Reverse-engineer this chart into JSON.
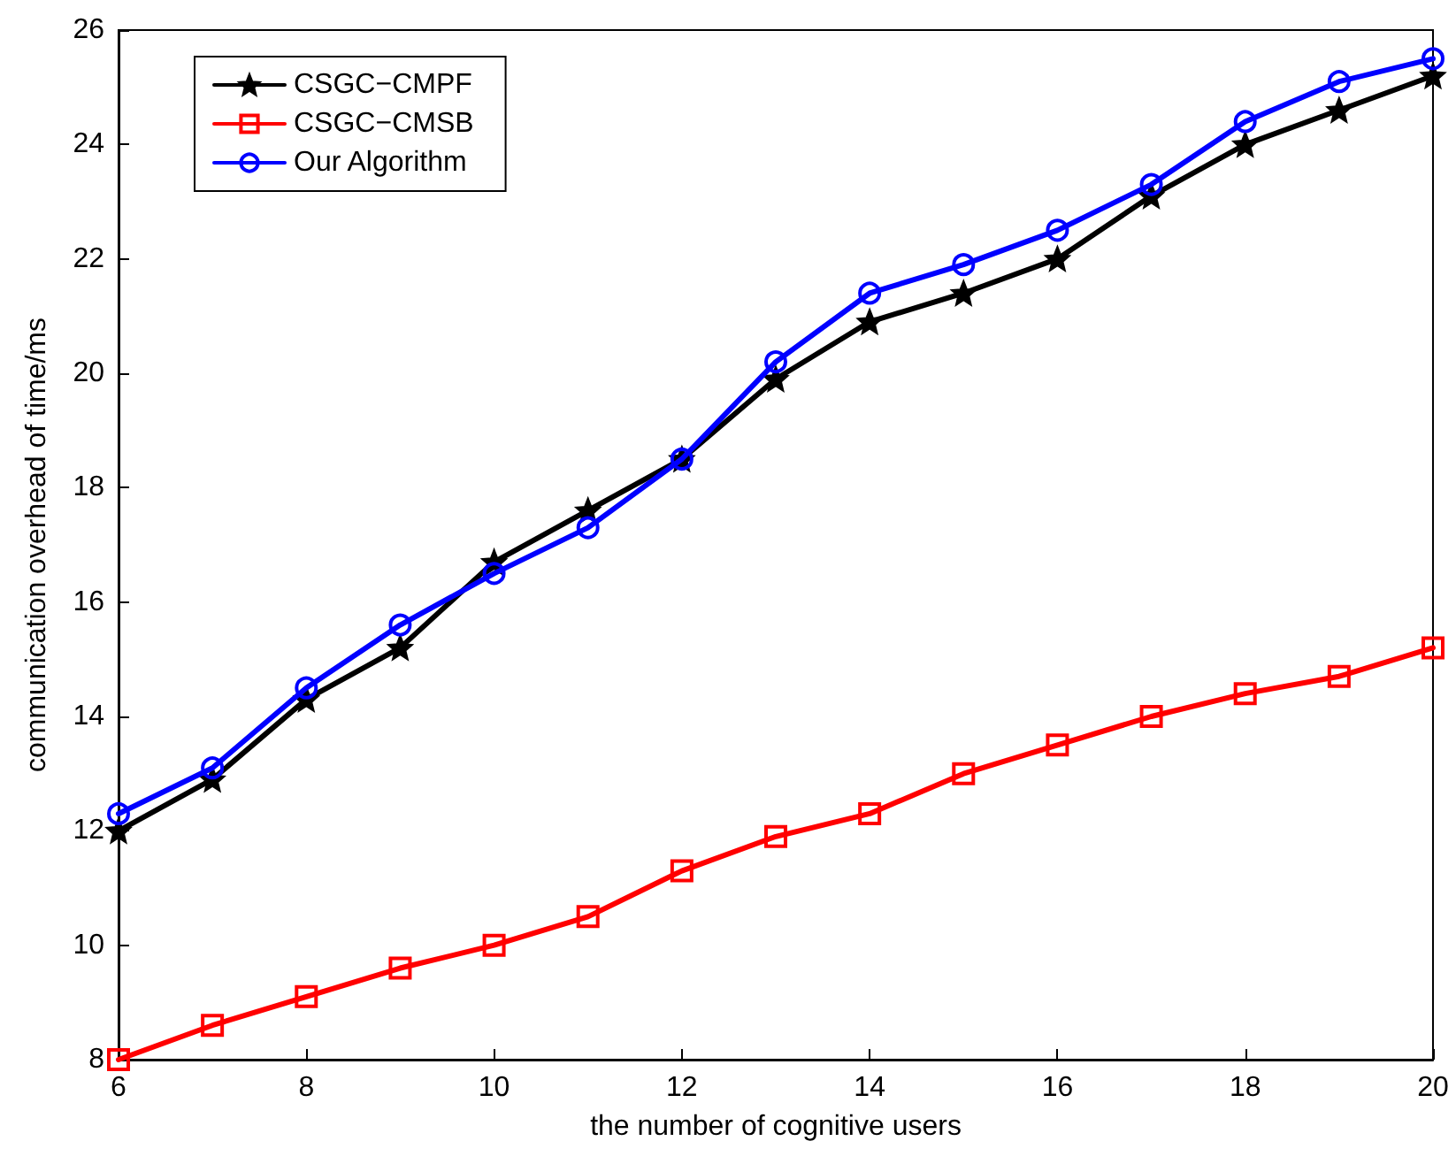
{
  "chart_data": {
    "type": "line",
    "xlabel": "the number of cognitive users",
    "ylabel": "communication overhead of time/ms",
    "x": [
      6,
      7,
      8,
      9,
      10,
      11,
      12,
      13,
      14,
      15,
      16,
      17,
      18,
      19,
      20
    ],
    "xlim": [
      6,
      20
    ],
    "xticks": [
      6,
      8,
      10,
      12,
      14,
      16,
      18,
      20
    ],
    "ylim": [
      8,
      26
    ],
    "yticks": [
      8,
      10,
      12,
      14,
      16,
      18,
      20,
      22,
      24,
      26
    ],
    "grid": false,
    "legend": "top left",
    "line_style": "solid",
    "series": [
      {
        "name": "CSGC−CMPF",
        "color": "#000000",
        "marker": "star",
        "values": [
          12.0,
          12.9,
          14.3,
          15.2,
          16.7,
          17.6,
          18.5,
          19.9,
          20.9,
          21.4,
          22.0,
          23.1,
          24.0,
          24.6,
          25.2
        ]
      },
      {
        "name": "CSGC−CMSB",
        "color": "#ff0000",
        "marker": "square",
        "values": [
          8.0,
          8.6,
          9.1,
          9.6,
          10.0,
          10.5,
          11.3,
          11.9,
          12.3,
          13.0,
          13.5,
          14.0,
          14.4,
          14.7,
          15.2
        ]
      },
      {
        "name": "Our Algorithm",
        "color": "#0000ff",
        "marker": "circle",
        "values": [
          12.3,
          13.1,
          14.5,
          15.6,
          16.5,
          17.3,
          18.5,
          20.2,
          21.4,
          21.9,
          22.5,
          23.3,
          24.4,
          25.1,
          25.5
        ]
      }
    ]
  }
}
